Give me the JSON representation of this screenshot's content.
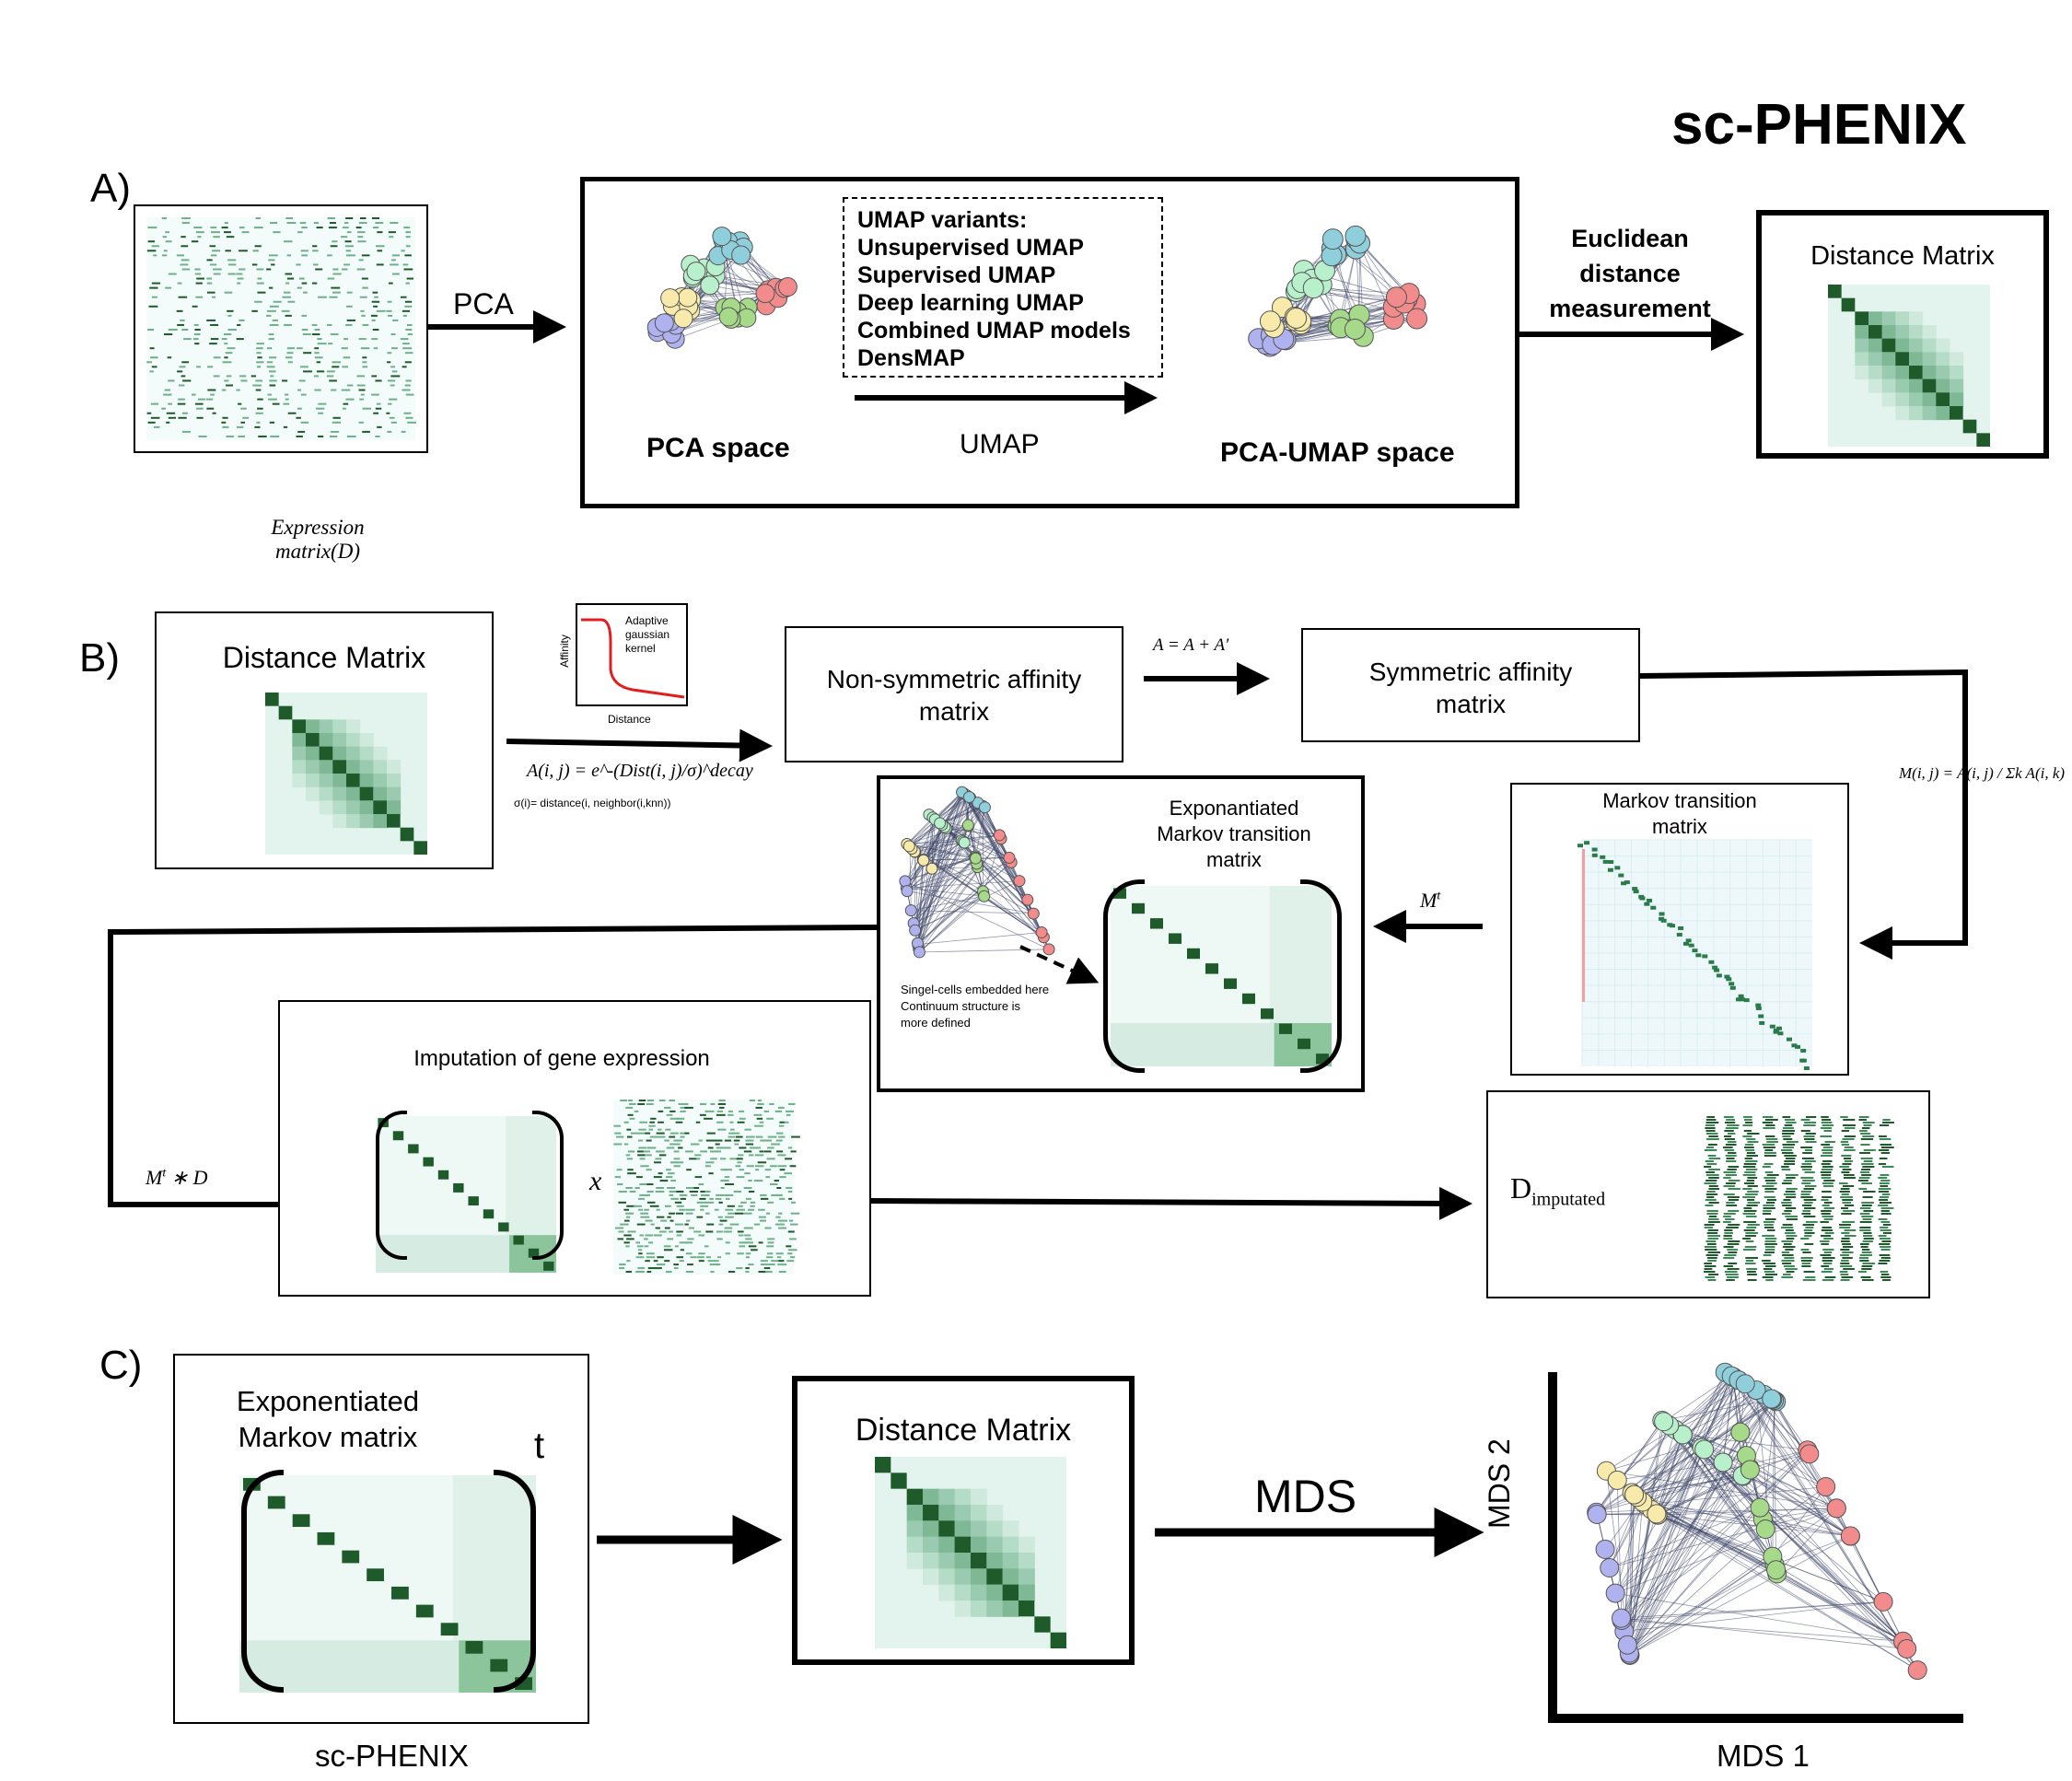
{
  "title": "sc-PHENIX",
  "panel_a": {
    "label": "A)",
    "expression_caption": "Expression\nmatrix(D)",
    "pca_arrow": "PCA",
    "pca_space": "PCA space",
    "umap_variants": [
      "UMAP variants:",
      "Unsupervised UMAP",
      "Supervised UMAP",
      "Deep learning UMAP",
      "Combined UMAP models",
      "DensMAP"
    ],
    "umap_arrow": "UMAP",
    "pca_umap_space": "PCA-UMAP space",
    "euclidean": "Euclidean\ndistance\nmeasurement",
    "distance_matrix": "Distance Matrix"
  },
  "panel_b": {
    "label": "B)",
    "distance_matrix": "Distance Matrix",
    "kernel_title": "Adaptive\ngaussian\nkernel",
    "kernel_ylabel": "Affinity",
    "kernel_xlabel": "Distance",
    "affinity_formula": "A(i, j) = e^-(Dist(i, j)/σ)^decay",
    "sigma_formula": "σ(i)= distance(i, neighbor(i,knn))",
    "non_symmetric": "Non-symmetric affinity\nmatrix",
    "sym_formula": "A = A + A′",
    "symmetric": "Symmetric affinity\nmatrix",
    "markov_formula": "M(i, j) = A(i, j) / Σk A(i, k)",
    "markov_transition": "Markov transition\nmatrix",
    "mt_label": "M",
    "mt_sup": "t",
    "exponentiated": "Exponantiated\nMarkov transition\nmatrix",
    "embedded_note": "Singel-cells embedded here\nContinuum structure is\nmore defined",
    "imputation": "Imputation of gene expression",
    "times_symbol": "x",
    "mtd_label": "M",
    "mtd_sup": "t",
    "mtd_rest": " ∗ D",
    "d_main": "D",
    "d_sub": "imputated"
  },
  "panel_c": {
    "label": "C)",
    "exp_markov": "Exponentiated\nMarkov matrix",
    "t_power": "t",
    "caption": "sc-PHENIX",
    "distance_matrix": "Distance Matrix",
    "mds_arrow": "MDS",
    "mds2": "MDS 2",
    "mds1": "MDS 1"
  },
  "colors": {
    "purple": "#b0b2f0",
    "yellow": "#f7eaaa",
    "mint": "#b9f0cc",
    "cyan": "#8fcfdc",
    "green": "#a6da8a",
    "red": "#f28b8b",
    "matrix_dark": "#1f5a2a",
    "matrix_light": "#e3f3ee",
    "kernel_curve": "#e02020"
  }
}
